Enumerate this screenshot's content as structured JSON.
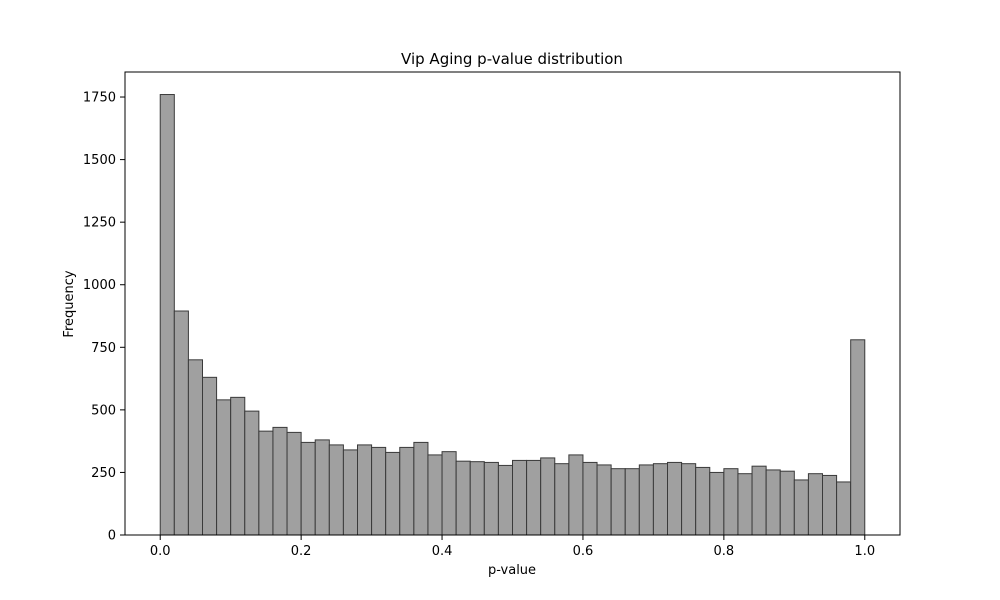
{
  "chart_data": {
    "type": "bar",
    "title": "Vip Aging p-value distribution",
    "xlabel": "p-value",
    "ylabel": "Frequency",
    "xlim": [
      -0.05,
      1.05
    ],
    "ylim": [
      0,
      1850
    ],
    "x_ticks": [
      0.0,
      0.2,
      0.4,
      0.6,
      0.8,
      1.0
    ],
    "x_tick_labels": [
      "0.0",
      "0.2",
      "0.4",
      "0.6",
      "0.8",
      "1.0"
    ],
    "y_ticks": [
      0,
      250,
      500,
      750,
      1000,
      1250,
      1500,
      1750
    ],
    "y_tick_labels": [
      "0",
      "250",
      "500",
      "750",
      "1000",
      "1250",
      "1500",
      "1750"
    ],
    "bin_start": 0.0,
    "bin_width": 0.02,
    "values": [
      1760,
      895,
      700,
      630,
      540,
      550,
      495,
      415,
      430,
      410,
      370,
      380,
      360,
      340,
      360,
      350,
      330,
      350,
      370,
      320,
      333,
      295,
      293,
      290,
      278,
      298,
      298,
      308,
      285,
      320,
      290,
      280,
      265,
      265,
      280,
      285,
      290,
      285,
      270,
      250,
      265,
      245,
      275,
      260,
      255,
      220,
      245,
      238,
      212,
      780
    ],
    "bar_fill": "#a0a0a0",
    "bar_edge": "#3a3a3a",
    "grid": false,
    "legend": "none"
  }
}
